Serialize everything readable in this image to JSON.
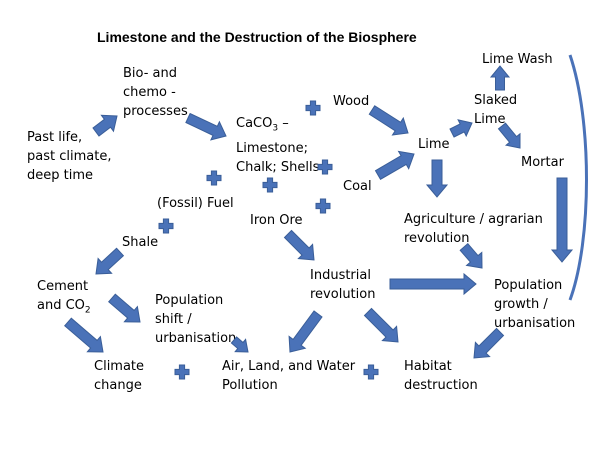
{
  "title": "Limestone and the Destruction of the Biosphere",
  "nodes": {
    "past_life": "Past life,\npast climate,\ndeep time",
    "bio_chemo": "Bio- and\nchemo -\nprocesses",
    "limestone_pre": "CaCO",
    "limestone_sub": "3",
    "limestone_post": " –\nLimestone;\nChalk; Shells",
    "wood": "Wood",
    "lime_wash": "Lime Wash",
    "slaked_lime": "Slaked\nLime",
    "lime": "Lime",
    "mortar": "Mortar",
    "coal": "Coal",
    "fossil_fuel": "(Fossil) Fuel",
    "iron_ore": "Iron Ore",
    "shale": "Shale",
    "agriculture": "Agriculture / agrarian\nrevolution",
    "cement_pre": "Cement\nand CO",
    "cement_sub": "2",
    "population_shift": "Population\nshift /\nurbanisation",
    "industrial": "Industrial\nrevolution",
    "population_growth": "Population\ngrowth /\nurbanisation",
    "climate_change": "Climate\nchange",
    "pollution": "Air, Land, and Water\nPollution",
    "habitat": "Habitat\ndestruction"
  },
  "colors": {
    "arrow_fill": "#4a72b8",
    "arrow_stroke": "#3a5e98",
    "text": "#000000"
  }
}
